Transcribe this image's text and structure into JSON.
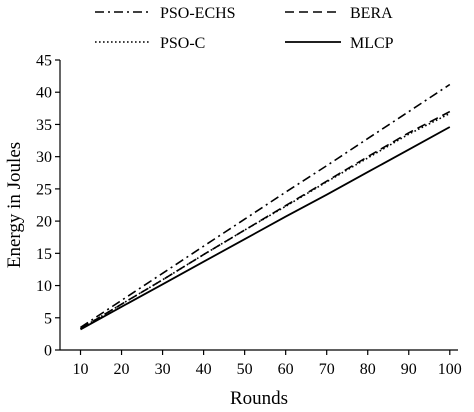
{
  "chart_data": {
    "type": "line",
    "title": "",
    "xlabel": "Rounds",
    "ylabel": "Energy in Joules",
    "xlim": [
      5,
      102
    ],
    "ylim": [
      0,
      45
    ],
    "x_ticks": [
      10,
      20,
      30,
      40,
      50,
      60,
      70,
      80,
      90,
      100
    ],
    "y_ticks": [
      0,
      5,
      10,
      15,
      20,
      25,
      30,
      35,
      40,
      45
    ],
    "grid": false,
    "legend_position": "top",
    "x": [
      10,
      20,
      30,
      40,
      50,
      60,
      70,
      80,
      90,
      100
    ],
    "series": [
      {
        "name": "PSO-ECHS",
        "style": "dashdot",
        "values": [
          3.5,
          7.7,
          11.9,
          16.1,
          20.3,
          24.5,
          28.6,
          32.8,
          37.0,
          41.2
        ]
      },
      {
        "name": "BERA",
        "style": "dashed",
        "values": [
          3.3,
          7.1,
          10.9,
          14.8,
          18.6,
          22.4,
          26.2,
          30.0,
          33.7,
          37.0
        ]
      },
      {
        "name": "PSO-C",
        "style": "dotted",
        "values": [
          3.3,
          7.1,
          10.9,
          14.8,
          18.6,
          22.3,
          26.1,
          29.8,
          33.5,
          36.7
        ]
      },
      {
        "name": "MLCP",
        "style": "solid",
        "values": [
          3.2,
          6.7,
          10.2,
          13.7,
          17.2,
          20.7,
          24.1,
          27.6,
          31.1,
          34.6
        ]
      }
    ]
  }
}
